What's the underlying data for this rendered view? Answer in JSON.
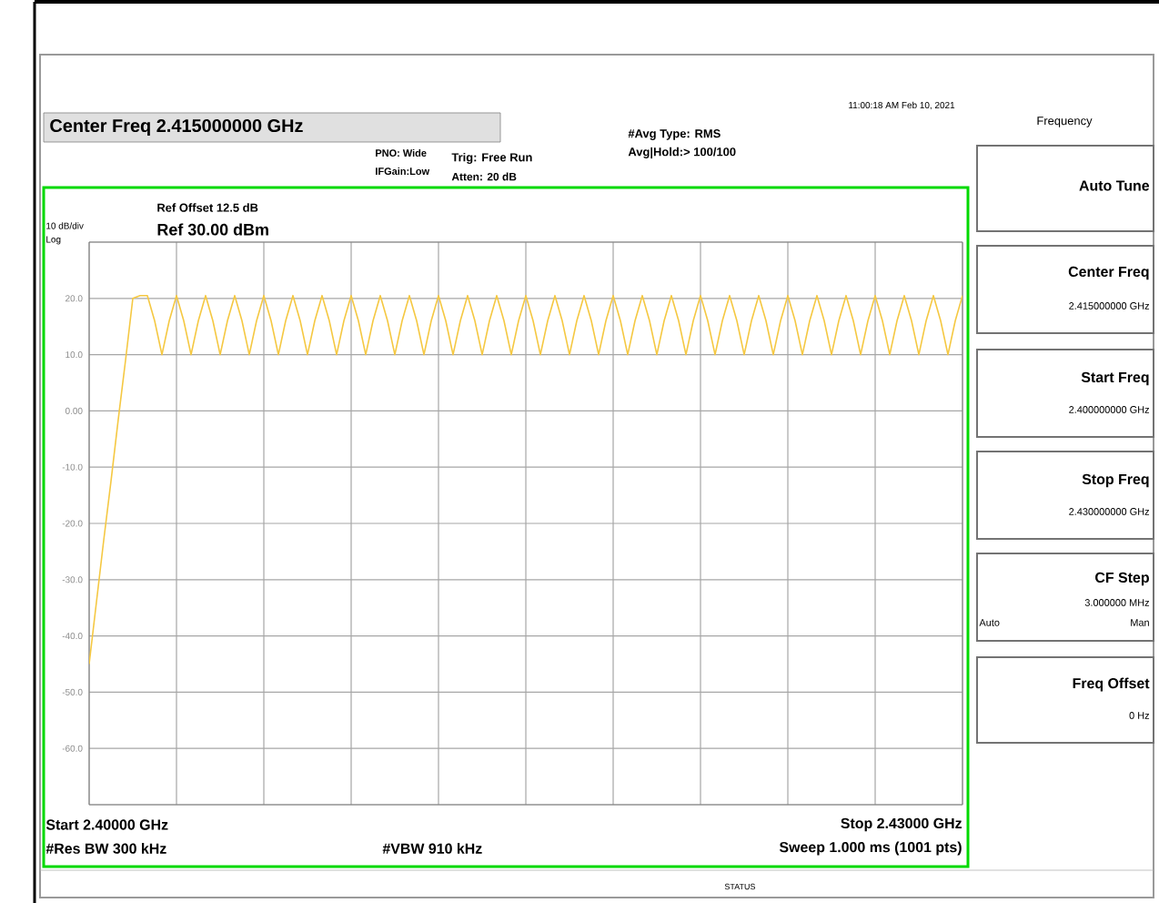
{
  "chart_data": {
    "type": "line",
    "title": "Center Freq 2.415000000 GHz",
    "annotations": [
      "PNO: Wide",
      "IFGain:Low",
      "Trig: Free Run",
      "Atten: 20 dB",
      "#Avg Type: RMS",
      "Avg|Hold:> 100/100",
      "11:00:18 AM Feb 10, 2021",
      "Ref Offset 12.5 dB",
      "Ref 30.00 dBm",
      "10 dB/div",
      "Log",
      "Start 2.40000 GHz",
      "Stop 2.43000 GHz",
      "#Res BW 300 kHz",
      "#VBW 910 kHz",
      "Sweep  1.000 ms (1001 pts)",
      "Frequency",
      "Auto Tune",
      "Center Freq",
      "2.415000000 GHz",
      "Start Freq",
      "2.400000000 GHz",
      "Stop Freq",
      "2.430000000 GHz",
      "CF Step",
      "3.000000 MHz",
      "Auto",
      "Man",
      "Freq Offset",
      "0 Hz",
      "STATUS"
    ],
    "categories": [
      null,
      null,
      null,
      null,
      null,
      null,
      null,
      null,
      null,
      null,
      null,
      null,
      null,
      null,
      null,
      null,
      null,
      null,
      null,
      null,
      null,
      null,
      null,
      null,
      null,
      null,
      null,
      null,
      null,
      null,
      null,
      null,
      null,
      null,
      null,
      null,
      null,
      null,
      null,
      null,
      null,
      null,
      null,
      null,
      null,
      null,
      null,
      null,
      null,
      null,
      null,
      null,
      null,
      null,
      null,
      null,
      null,
      null,
      null,
      null,
      null,
      null,
      null,
      null,
      null,
      null,
      null,
      null,
      null,
      null,
      null,
      null,
      null,
      null,
      null,
      null,
      null,
      null,
      null,
      null,
      null,
      null,
      null,
      null,
      null,
      null,
      null,
      null,
      null,
      null,
      null,
      null,
      null,
      null,
      null,
      null,
      null,
      null,
      null,
      null,
      null,
      null,
      null,
      null,
      null,
      null,
      null,
      null,
      null,
      null,
      null,
      null,
      null,
      null,
      null,
      null,
      null,
      null,
      null,
      null,
      null
    ],
    "series": [
      {
        "color": "#f5c842",
        "values": [
          -45,
          -34,
          -23,
          -12.5,
          -1.5,
          9,
          20,
          20.5,
          20.5,
          16,
          10,
          16,
          20.5,
          16,
          10,
          16,
          20.5,
          16,
          10,
          16,
          20.5,
          16,
          10,
          16,
          20.5,
          16,
          10,
          16,
          20.5,
          16,
          10,
          16,
          20.5,
          16,
          10,
          16,
          20.5,
          16,
          10,
          16,
          20.5,
          16,
          10,
          16,
          20.5,
          16,
          10,
          16,
          20.5,
          16,
          10,
          16,
          20.5,
          16,
          10,
          16,
          20.5,
          16,
          10,
          16,
          20.5,
          16,
          10,
          16,
          20.5,
          16,
          10,
          16,
          20.5,
          16,
          10,
          16,
          20.5,
          16,
          10,
          16,
          20.5,
          16,
          10,
          16,
          20.5,
          16,
          10,
          16,
          20.5,
          16,
          10,
          16,
          20.5,
          16,
          10,
          16,
          20.5,
          16,
          10,
          16,
          20.5,
          16,
          10,
          16,
          20.5,
          16,
          10,
          16,
          20.5,
          16,
          10,
          16,
          20.5,
          16,
          10,
          16,
          20.5,
          16,
          10,
          16,
          20.5,
          16,
          10,
          16,
          20.5
        ]
      }
    ],
    "ylim": [
      -70,
      30
    ],
    "yticks": [
      {
        "value": 30,
        "label": null
      },
      {
        "value": 20,
        "label": "20.0"
      },
      {
        "value": 10,
        "label": "10.0"
      },
      {
        "value": 0,
        "label": "0.00"
      },
      {
        "value": -10,
        "label": "-10.0"
      },
      {
        "value": -20,
        "label": "-20.0"
      },
      {
        "value": -30,
        "label": "-30.0"
      },
      {
        "value": -40,
        "label": "-40.0"
      },
      {
        "value": -50,
        "label": "-50.0"
      },
      {
        "value": -60,
        "label": "-60.0"
      },
      {
        "value": -70,
        "label": null
      }
    ],
    "tick_labels": "y",
    "grid": true
  }
}
